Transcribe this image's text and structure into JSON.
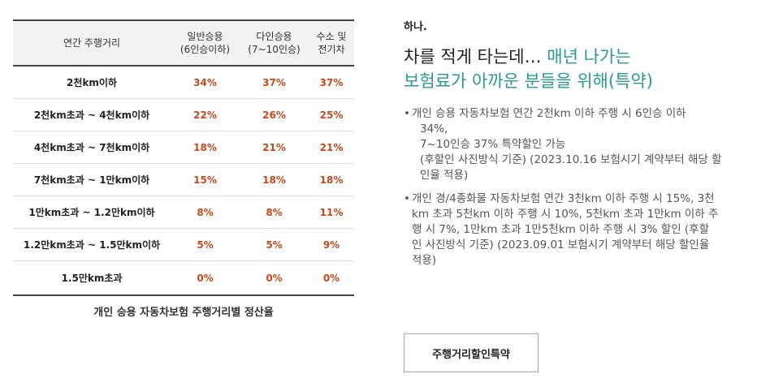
{
  "table": {
    "headers": [
      {
        "line1": "연간 주행거리",
        "line2": ""
      },
      {
        "line1": "일반승용",
        "line2": "(6인승이하)"
      },
      {
        "line1": "다인승용",
        "line2": "(7~10인승)"
      },
      {
        "line1": "수소 및",
        "line2": "전기차"
      }
    ],
    "rows": [
      {
        "distance": "2천km이하",
        "general": "34%",
        "multi": "37%",
        "eco": "37%"
      },
      {
        "distance": "2천km초과 ~ 4천km이하",
        "general": "22%",
        "multi": "26%",
        "eco": "25%"
      },
      {
        "distance": "4천km초과 ~ 7천km이하",
        "general": "18%",
        "multi": "21%",
        "eco": "21%"
      },
      {
        "distance": "7천km초과 ~ 1만km이하",
        "general": "15%",
        "multi": "18%",
        "eco": "18%"
      },
      {
        "distance": "1만km초과 ~ 1.2만km이하",
        "general": "8%",
        "multi": "8%",
        "eco": "11%"
      },
      {
        "distance": "1.2만km초과 ~ 1.5만km이하",
        "general": "5%",
        "multi": "5%",
        "eco": "9%"
      },
      {
        "distance": "1.5만km초과",
        "general": "0%",
        "multi": "0%",
        "eco": "0%"
      }
    ],
    "caption": "개인 승용 자동차보험 주행거리별 정산율"
  },
  "panel": {
    "eyebrow": "하나.",
    "headline_part1": "차를 적게 타는데… ",
    "headline_accent1": "매년 나가는",
    "headline_accent2": "보험료가 아까운 분들을 위해(특약)",
    "bullet1": [
      "개인 승용 자동차보험 연간 2천km 이하 주행 시 6인승 이하",
      "34%,",
      "7~10인승 37% 특약할인 가능",
      "(후할인 사진방식 기준) (2023.10.16 보험시기 계약부터 해당 할",
      "인율 적용)"
    ],
    "bullet2": [
      "개인 경/4종화물 자동차보험 연간 3천km 이하 주행 시 15%, 3천",
      "km 초과 5천km 이하 주행 시 10%, 5천km 초과 1만km 이하 주",
      "행 시 7%, 1만km 초과 1만5천km 이하 주행 시 3% 할인 (후할",
      "인 사진방식 기준) (2023.09.01 보험시기 계약부터 해당 할인율",
      "적용)"
    ],
    "button_label": "주행거리할인특약"
  },
  "colors": {
    "accent": "#2a9b8a",
    "rate": "#c8491c"
  }
}
